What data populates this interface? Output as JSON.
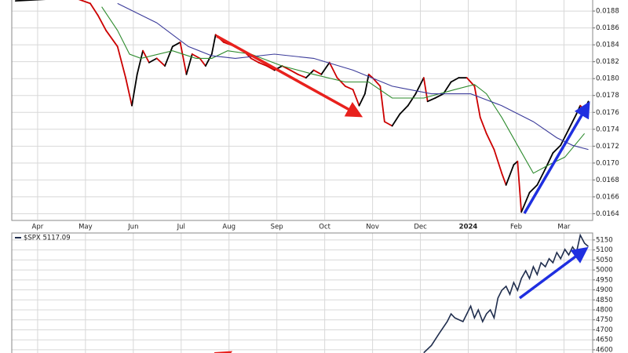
{
  "chart_data": [
    {
      "type": "line",
      "xlim": [
        -0.54,
        11.6
      ],
      "xticks": [
        {
          "value": 0,
          "label": "Apr"
        },
        {
          "value": 1,
          "label": "May"
        },
        {
          "value": 2,
          "label": "Jun"
        },
        {
          "value": 3,
          "label": "Jul"
        },
        {
          "value": 4,
          "label": "Aug"
        },
        {
          "value": 5,
          "label": "Sep"
        },
        {
          "value": 6,
          "label": "Oct"
        },
        {
          "value": 7,
          "label": "Nov"
        },
        {
          "value": 8,
          "label": "Dec"
        },
        {
          "value": 9,
          "label": "2024"
        },
        {
          "value": 10,
          "label": "Feb"
        },
        {
          "value": 11,
          "label": "Mar"
        }
      ],
      "ylim": [
        0.01633,
        0.01894
      ],
      "yticks": [
        0.0164,
        0.0166,
        0.0168,
        {
          "value": 0.017,
          "label": "0.0170"
        },
        0.0172,
        0.0174,
        0.0176,
        0.0178,
        {
          "value": 0.018,
          "label": "0.0180"
        },
        0.0182,
        0.0184,
        0.0186,
        0.0188
      ],
      "grid": true,
      "series": [
        {
          "color": "#cc0000",
          "up_color": "#000000",
          "x": [
            -0.46,
            0.2,
            0.85,
            1.1,
            1.26,
            1.43,
            1.67,
            1.84,
            1.97,
            2.08,
            2.2,
            2.33,
            2.49,
            2.66,
            2.82,
            2.98,
            3.11,
            3.23,
            3.39,
            3.51,
            3.64,
            3.72,
            3.89,
            4.13,
            4.3,
            4.46,
            4.62,
            4.79,
            4.95,
            5.11,
            5.28,
            5.44,
            5.61,
            5.77,
            5.93,
            6.1,
            6.26,
            6.43,
            6.59,
            6.72,
            6.84,
            6.92,
            7.0,
            7.16,
            7.25,
            7.41,
            7.57,
            7.74,
            7.9,
            8.07,
            8.15,
            8.31,
            8.48,
            8.64,
            8.8,
            8.97,
            9.13,
            9.25,
            9.38,
            9.54,
            9.7,
            9.79,
            9.95,
            10.03,
            10.11,
            10.28,
            10.44,
            10.61,
            10.77,
            10.93,
            11.1,
            11.26,
            11.34,
            11.43,
            11.51
          ],
          "values": [
            0.01892,
            0.01894,
            0.01894,
            0.01889,
            0.01875,
            0.01857,
            0.01838,
            0.01801,
            0.01768,
            0.01805,
            0.01833,
            0.01819,
            0.01824,
            0.01815,
            0.01838,
            0.01843,
            0.01805,
            0.01829,
            0.01824,
            0.01815,
            0.01829,
            0.01852,
            0.01843,
            0.01838,
            0.01833,
            0.01824,
            0.01819,
            0.01815,
            0.0181,
            0.01815,
            0.0181,
            0.01805,
            0.01801,
            0.0181,
            0.01805,
            0.01819,
            0.01801,
            0.01791,
            0.01787,
            0.01768,
            0.01782,
            0.01805,
            0.01801,
            0.01791,
            0.01749,
            0.01744,
            0.01758,
            0.01768,
            0.01782,
            0.01801,
            0.01773,
            0.01777,
            0.01782,
            0.01796,
            0.01801,
            0.01801,
            0.01791,
            0.01754,
            0.01735,
            0.01716,
            0.01688,
            0.01674,
            0.01698,
            0.01702,
            0.01642,
            0.01665,
            0.01674,
            0.01693,
            0.01712,
            0.01721,
            0.0174,
            0.01758,
            0.01768,
            0.01763,
            0.01773
          ]
        },
        {
          "color": "#2e8b2e",
          "x": [
            1.34,
            1.67,
            1.92,
            2.16,
            2.82,
            3.31,
            3.64,
            3.97,
            4.46,
            5.11,
            5.77,
            6.43,
            6.92,
            7.41,
            8.07,
            8.72,
            9.13,
            9.38,
            9.7,
            10.03,
            10.36,
            10.69,
            11.02,
            11.43
          ],
          "values": [
            0.01885,
            0.01857,
            0.01829,
            0.01824,
            0.01833,
            0.01824,
            0.01824,
            0.01833,
            0.01829,
            0.01815,
            0.01805,
            0.01796,
            0.01796,
            0.01777,
            0.01777,
            0.01787,
            0.01793,
            0.01782,
            0.01754,
            0.01721,
            0.01688,
            0.01698,
            0.01707,
            0.01735
          ]
        },
        {
          "color": "#3b3b9a",
          "x": [
            1.67,
            2.49,
            3.15,
            3.64,
            4.13,
            4.95,
            5.77,
            6.59,
            7.41,
            8.23,
            9.05,
            9.7,
            10.36,
            10.85,
            11.18,
            11.51
          ],
          "values": [
            0.01889,
            0.01866,
            0.01838,
            0.01827,
            0.01824,
            0.01829,
            0.01824,
            0.0181,
            0.01791,
            0.01782,
            0.01782,
            0.01768,
            0.01749,
            0.0173,
            0.01721,
            0.01716
          ]
        }
      ]
    },
    {
      "type": "line",
      "xlim": [
        -0.54,
        11.6
      ],
      "ylim": [
        4584,
        5185
      ],
      "yticks": [
        4600,
        4650,
        4700,
        4750,
        4800,
        4850,
        4900,
        4950,
        5000,
        5050,
        5100,
        5150
      ],
      "grid": true,
      "series": [
        {
          "name": "$SPX 5117.09",
          "color": "#1f2d4d",
          "x": [
            8.07,
            8.23,
            8.39,
            8.56,
            8.64,
            8.72,
            8.89,
            8.97,
            9.05,
            9.13,
            9.21,
            9.3,
            9.38,
            9.46,
            9.54,
            9.62,
            9.7,
            9.79,
            9.87,
            9.95,
            10.03,
            10.11,
            10.2,
            10.28,
            10.36,
            10.44,
            10.52,
            10.61,
            10.69,
            10.77,
            10.85,
            10.93,
            11.02,
            11.1,
            11.18,
            11.26,
            11.34,
            11.43,
            11.51
          ],
          "values": [
            4585,
            4622,
            4681,
            4741,
            4780,
            4760,
            4741,
            4780,
            4819,
            4760,
            4800,
            4741,
            4780,
            4800,
            4760,
            4859,
            4898,
            4918,
            4878,
            4937,
            4898,
            4957,
            4996,
            4957,
            5016,
            4977,
            5036,
            5016,
            5056,
            5036,
            5087,
            5056,
            5103,
            5075,
            5115,
            5087,
            5174,
            5134,
            5117
          ]
        }
      ]
    }
  ]
}
